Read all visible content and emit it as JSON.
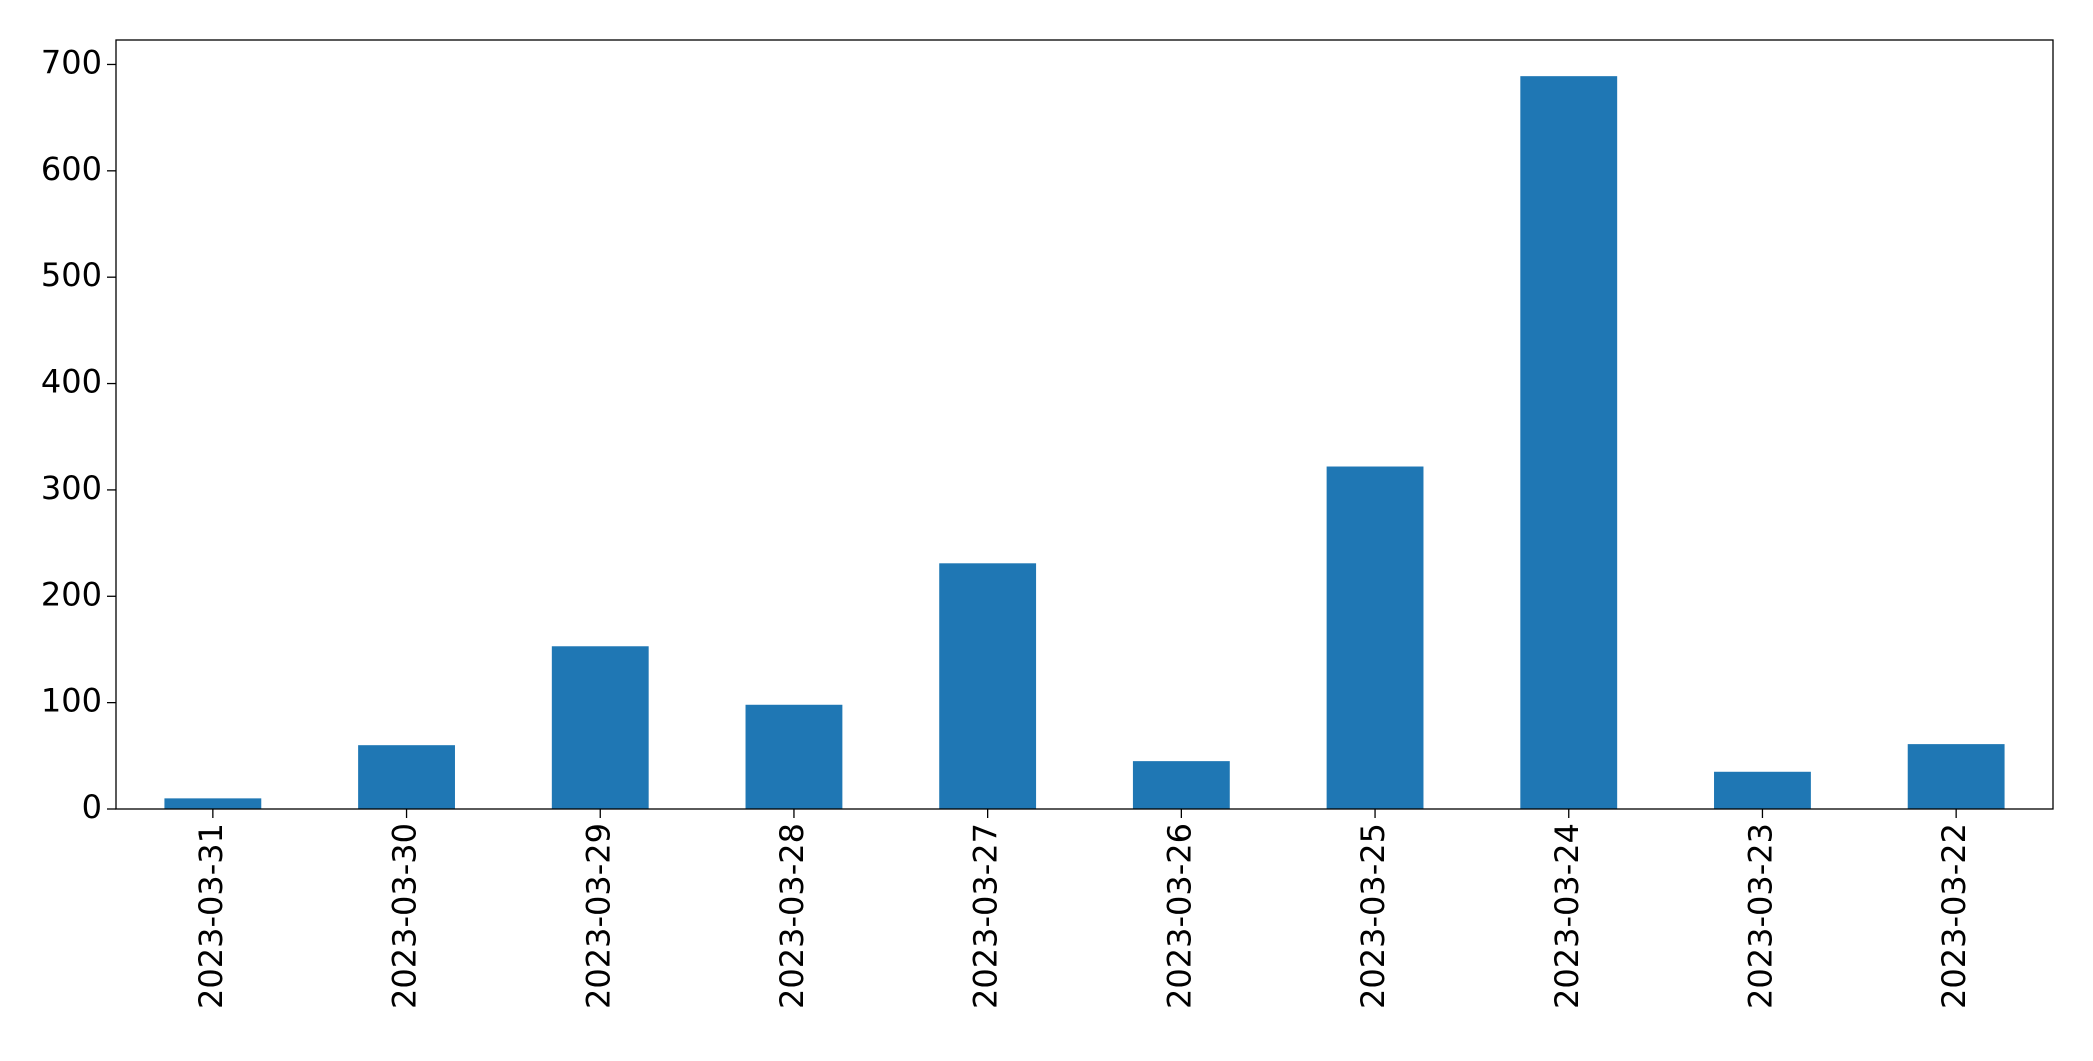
{
  "chart_data": {
    "type": "bar",
    "categories": [
      "2023-03-31",
      "2023-03-30",
      "2023-03-29",
      "2023-03-28",
      "2023-03-27",
      "2023-03-26",
      "2023-03-25",
      "2023-03-24",
      "2023-03-23",
      "2023-03-22"
    ],
    "values": [
      10,
      60,
      153,
      98,
      231,
      45,
      322,
      689,
      35,
      61
    ],
    "color": "#1f77b4",
    "ylim": [
      0,
      723
    ],
    "yticks": [
      0,
      100,
      200,
      300,
      400,
      500,
      600,
      700
    ],
    "grid": false
  }
}
